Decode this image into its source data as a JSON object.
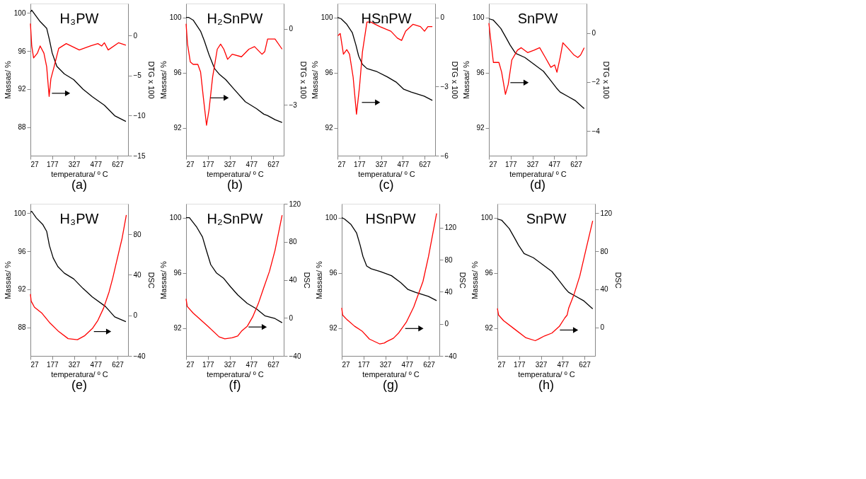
{
  "chart_data": [
    {
      "type": "line",
      "title": "H₃PW",
      "xlabel": "temperatura/ º C",
      "ylabel": "Massas/ %",
      "y2label": "DTG x 100",
      "annotations": [
        "(a)"
      ],
      "xlim": [
        27,
        700
      ],
      "xticks": [
        27,
        177,
        327,
        477,
        627
      ],
      "ylim": [
        85,
        101
      ],
      "yticks": [
        88,
        92,
        96,
        100
      ],
      "y2lim": [
        -15,
        4
      ],
      "y2ticks": [
        -15,
        -10,
        -5,
        0
      ],
      "series": [
        {
          "color": "#000000",
          "x": [
            27,
            36,
            94,
            139,
            158,
            177,
            209,
            261,
            325,
            389,
            454,
            537,
            608,
            685
          ],
          "values": [
            100.1,
            100.3,
            99.1,
            98.4,
            97.2,
            95.8,
            94.4,
            93.6,
            93.0,
            92.0,
            91.2,
            90.3,
            89.2,
            88.6
          ]
        },
        {
          "color": "#ff0000",
          "axis": "y2",
          "x": [
            27,
            36,
            49,
            75,
            94,
            120,
            139,
            156,
            168,
            190,
            222,
            274,
            364,
            441,
            492,
            518,
            537,
            563,
            634,
            685
          ],
          "values": [
            1.5,
            -1.3,
            -2.8,
            -2.2,
            -1.3,
            -2.2,
            -3.9,
            -7.6,
            -5.4,
            -3.9,
            -1.6,
            -1.0,
            -1.8,
            -1.3,
            -1.0,
            -1.3,
            -0.9,
            -1.8,
            -0.9,
            -1.2
          ]
        }
      ]
    },
    {
      "type": "line",
      "title": "H₂SnPW",
      "xlabel": "temperatura/ º C",
      "ylabel": "Massas/ %",
      "y2label": "DTG x 100",
      "annotations": [
        "(b)"
      ],
      "xlim": [
        27,
        700
      ],
      "xticks": [
        27,
        177,
        327,
        477,
        627
      ],
      "ylim": [
        90,
        101
      ],
      "yticks": [
        92,
        96,
        100
      ],
      "y2lim": [
        -5,
        1
      ],
      "y2ticks": [
        -3,
        0
      ],
      "series": [
        {
          "color": "#000000",
          "x": [
            27,
            44,
            76,
            127,
            153,
            185,
            223,
            255,
            300,
            358,
            435,
            512,
            563,
            589,
            640,
            689
          ],
          "values": [
            100.0,
            100.0,
            99.8,
            99.0,
            98.3,
            97.3,
            96.3,
            95.9,
            95.5,
            94.8,
            93.9,
            93.4,
            93.0,
            92.9,
            92.6,
            92.4
          ]
        },
        {
          "color": "#ff0000",
          "axis": "y2",
          "x": [
            27,
            37,
            56,
            76,
            108,
            127,
            146,
            168,
            185,
            210,
            242,
            265,
            287,
            313,
            345,
            409,
            460,
            499,
            550,
            569,
            589,
            640,
            689
          ],
          "values": [
            0.2,
            -0.6,
            -1.3,
            -1.4,
            -1.4,
            -1.7,
            -2.7,
            -3.8,
            -3.2,
            -1.9,
            -0.8,
            -0.6,
            -0.8,
            -1.2,
            -1.0,
            -1.1,
            -0.8,
            -0.7,
            -1.0,
            -0.9,
            -0.4,
            -0.4,
            -0.8
          ]
        }
      ]
    },
    {
      "type": "line",
      "title": "HSnPW",
      "xlabel": "temperatura/ º C",
      "ylabel": "Massas/ %",
      "y2label": "DTG x 100",
      "annotations": [
        "(c)"
      ],
      "xlim": [
        27,
        700
      ],
      "xticks": [
        27,
        177,
        327,
        477,
        627
      ],
      "ylim": [
        90,
        101
      ],
      "yticks": [
        92,
        96,
        100
      ],
      "y2lim": [
        -6,
        0.6
      ],
      "y2ticks": [
        -6,
        -3,
        0
      ],
      "series": [
        {
          "color": "#000000",
          "x": [
            27,
            52,
            91,
            129,
            154,
            173,
            199,
            230,
            294,
            370,
            434,
            484,
            535,
            624,
            681
          ],
          "values": [
            100.0,
            99.9,
            99.5,
            98.9,
            98.0,
            97.2,
            96.6,
            96.3,
            96.1,
            95.7,
            95.3,
            94.8,
            94.6,
            94.3,
            94.0
          ]
        },
        {
          "color": "#ff0000",
          "axis": "y2",
          "x": [
            29,
            46,
            68,
            91,
            110,
            135,
            158,
            179,
            199,
            230,
            256,
            319,
            395,
            440,
            469,
            497,
            548,
            599,
            627,
            650,
            681
          ],
          "values": [
            -0.8,
            -0.7,
            -1.6,
            -1.4,
            -1.6,
            -2.6,
            -4.2,
            -3.0,
            -1.5,
            -0.2,
            -0.2,
            -0.4,
            -0.6,
            -0.9,
            -1.0,
            -0.6,
            -0.3,
            -0.4,
            -0.6,
            -0.4,
            -0.4
          ]
        }
      ]
    },
    {
      "type": "line",
      "title": "SnPW",
      "xlabel": "temperatura/ º C",
      "ylabel": "Massas/ %",
      "y2label": "DTG x 100",
      "annotations": [
        "(d)"
      ],
      "xlim": [
        27,
        700
      ],
      "xticks": [
        27,
        177,
        327,
        477,
        627
      ],
      "ylim": [
        90,
        101
      ],
      "yticks": [
        92,
        96,
        100
      ],
      "y2lim": [
        -5,
        1.2
      ],
      "y2ticks": [
        -4,
        -2,
        0
      ],
      "series": [
        {
          "color": "#000000",
          "x": [
            27,
            58,
            109,
            147,
            173,
            211,
            275,
            339,
            403,
            441,
            492,
            518,
            569,
            620,
            684
          ],
          "values": [
            99.9,
            99.8,
            99.2,
            98.5,
            98.0,
            97.4,
            97.1,
            96.6,
            96.1,
            95.6,
            94.9,
            94.6,
            94.3,
            94.0,
            93.4
          ]
        },
        {
          "color": "#ff0000",
          "axis": "y2",
          "x": [
            27,
            38,
            58,
            96,
            115,
            141,
            160,
            185,
            224,
            250,
            294,
            339,
            377,
            416,
            454,
            480,
            496,
            518,
            537,
            569,
            614,
            640,
            659,
            684
          ],
          "values": [
            0.4,
            -0.2,
            -1.2,
            -1.2,
            -1.6,
            -2.5,
            -2.1,
            -1.1,
            -0.7,
            -0.6,
            -0.8,
            -0.7,
            -0.6,
            -1.0,
            -1.4,
            -1.3,
            -1.6,
            -1.0,
            -0.4,
            -0.6,
            -0.9,
            -1.0,
            -0.9,
            -0.6
          ]
        }
      ]
    },
    {
      "type": "line",
      "title": "H₃PW",
      "xlabel": "temperatura/ º C",
      "ylabel": "Massas/ %",
      "y2label": "DSC",
      "annotations": [
        "(e)"
      ],
      "xlim": [
        27,
        700
      ],
      "xticks": [
        27,
        177,
        327,
        477,
        627
      ],
      "ylim": [
        85,
        101
      ],
      "yticks": [
        88,
        92,
        96,
        100
      ],
      "y2lim": [
        -40,
        110
      ],
      "y2ticks": [
        -40,
        0,
        40,
        80
      ],
      "series": [
        {
          "color": "#000000",
          "x": [
            27,
            36,
            68,
            113,
            139,
            158,
            184,
            216,
            261,
            325,
            389,
            454,
            544,
            608,
            685
          ],
          "values": [
            100.1,
            100.2,
            99.5,
            98.8,
            98.1,
            96.6,
            95.3,
            94.4,
            93.7,
            93.1,
            92.1,
            91.2,
            90.2,
            89.1,
            88.6
          ]
        },
        {
          "color": "#ff0000",
          "axis": "y2",
          "x": [
            27,
            32,
            55,
            107,
            158,
            222,
            287,
            351,
            402,
            454,
            492,
            531,
            569,
            595,
            621,
            659,
            688
          ],
          "values": [
            21,
            14,
            8,
            2,
            -7,
            -16,
            -23,
            -24,
            -20,
            -13,
            -5,
            7,
            23,
            37,
            53,
            76,
            99
          ]
        }
      ]
    },
    {
      "type": "line",
      "title": "H₂SnPW",
      "xlabel": "temperatura/ º C",
      "ylabel": "Massas/ %",
      "y2label": "DSC",
      "annotations": [
        "(f)"
      ],
      "xlim": [
        27,
        700
      ],
      "xticks": [
        27,
        177,
        327,
        477,
        627
      ],
      "ylim": [
        90,
        101
      ],
      "yticks": [
        92,
        96,
        100
      ],
      "y2lim": [
        -40,
        120
      ],
      "y2ticks": [
        -40,
        0,
        40,
        80,
        120
      ],
      "series": [
        {
          "color": "#000000",
          "x": [
            27,
            50,
            101,
            140,
            165,
            197,
            236,
            287,
            333,
            384,
            448,
            512,
            570,
            640,
            689
          ],
          "values": [
            100.0,
            100.0,
            99.3,
            98.6,
            97.7,
            96.6,
            96.0,
            95.6,
            95.0,
            94.4,
            93.8,
            93.4,
            92.9,
            92.7,
            92.4
          ]
        },
        {
          "color": "#ff0000",
          "axis": "y2",
          "x": [
            27,
            35,
            76,
            178,
            255,
            294,
            345,
            383,
            409,
            448,
            486,
            525,
            563,
            602,
            640,
            689
          ],
          "values": [
            20,
            12,
            5,
            -9,
            -20,
            -22,
            -21,
            -19,
            -14,
            -9,
            1,
            15,
            32,
            49,
            71,
            108
          ]
        }
      ]
    },
    {
      "type": "line",
      "title": "HSnPW",
      "xlabel": "temperatura/ º C",
      "ylabel": "Massas/ %",
      "y2label": "DSC",
      "annotations": [
        "(g)"
      ],
      "xlim": [
        27,
        700
      ],
      "xticks": [
        27,
        177,
        327,
        477,
        627
      ],
      "ylim": [
        90,
        101
      ],
      "yticks": [
        92,
        96,
        100
      ],
      "y2lim": [
        -40,
        150
      ],
      "y2ticks": [
        -40,
        0,
        40,
        80,
        120
      ],
      "series": [
        {
          "color": "#000000",
          "x": [
            27,
            46,
            91,
            129,
            154,
            173,
            199,
            230,
            294,
            370,
            434,
            484,
            535,
            624,
            681
          ],
          "values": [
            100.0,
            99.9,
            99.5,
            98.9,
            98.0,
            97.2,
            96.5,
            96.3,
            96.1,
            95.8,
            95.3,
            94.8,
            94.6,
            94.3,
            94.0
          ]
        },
        {
          "color": "#ff0000",
          "axis": "y2",
          "x": [
            27,
            33,
            65,
            116,
            167,
            218,
            288,
            320,
            338,
            383,
            421,
            472,
            523,
            561,
            587,
            625,
            681
          ],
          "values": [
            20,
            11,
            5,
            -3,
            -9,
            -19,
            -25,
            -24,
            -22,
            -18,
            -11,
            2,
            21,
            40,
            53,
            84,
            138
          ]
        }
      ]
    },
    {
      "type": "line",
      "title": "SnPW",
      "xlabel": "temperatura/ º C",
      "ylabel": "Massas/ %",
      "y2label": "DSC",
      "annotations": [
        "(h)"
      ],
      "xlim": [
        27,
        700
      ],
      "xticks": [
        27,
        177,
        327,
        477,
        627
      ],
      "ylim": [
        90,
        101
      ],
      "yticks": [
        92,
        96,
        100
      ],
      "y2lim": [
        -30,
        130
      ],
      "y2ticks": [
        0,
        40,
        80,
        120
      ],
      "series": [
        {
          "color": "#000000",
          "x": [
            27,
            58,
            109,
            147,
            173,
            211,
            275,
            339,
            403,
            441,
            492,
            518,
            569,
            620,
            684
          ],
          "values": [
            99.9,
            99.8,
            99.2,
            98.5,
            98.0,
            97.4,
            97.1,
            96.6,
            96.1,
            95.6,
            94.9,
            94.6,
            94.3,
            94.0,
            93.4
          ]
        },
        {
          "color": "#ff0000",
          "axis": "y2",
          "x": [
            27,
            35,
            70,
            147,
            224,
            288,
            314,
            352,
            403,
            454,
            492,
            508,
            518,
            556,
            595,
            633,
            684
          ],
          "values": [
            20,
            13,
            7,
            -2,
            -11,
            -14,
            -12,
            -9,
            -6,
            1,
            10,
            13,
            20,
            35,
            54,
            79,
            112
          ]
        }
      ]
    }
  ]
}
